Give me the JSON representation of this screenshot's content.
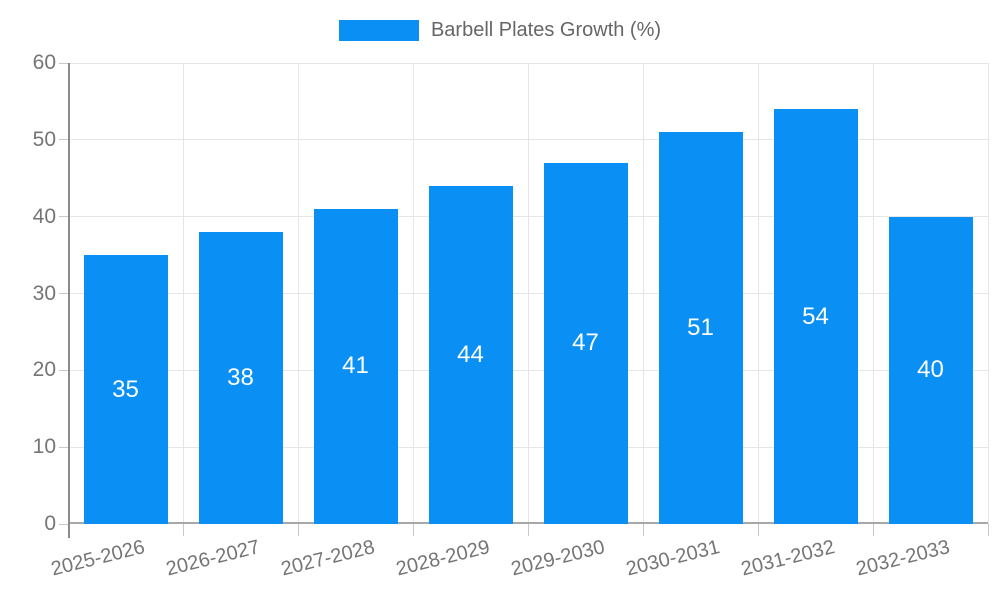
{
  "legend": {
    "label": "Barbell Plates Growth (%)"
  },
  "chart_data": {
    "type": "bar",
    "title": "",
    "series_name": "Barbell Plates Growth (%)",
    "categories": [
      "2025-2026",
      "2026-2027",
      "2027-2028",
      "2028-2029",
      "2029-2030",
      "2030-2031",
      "2031-2032",
      "2032-2033"
    ],
    "values": [
      35,
      38,
      41,
      44,
      47,
      51,
      54,
      40
    ],
    "xlabel": "",
    "ylabel": "",
    "ylim": [
      0,
      60
    ],
    "yticks": [
      0,
      10,
      20,
      30,
      40,
      50,
      60
    ],
    "grid": true,
    "legend_position": "top-center",
    "value_labels": "inside-middle"
  },
  "colors": {
    "bar": "#0a8ff5",
    "bar_value_text": "#ffffff",
    "grid": "#e6e6e6",
    "axis_line": "#8a8a8a",
    "baseline": "#a8a8a8",
    "tick": "#c8c8c8",
    "axis_text": "#757575",
    "legend_text": "#666666",
    "background": "#ffffff"
  }
}
